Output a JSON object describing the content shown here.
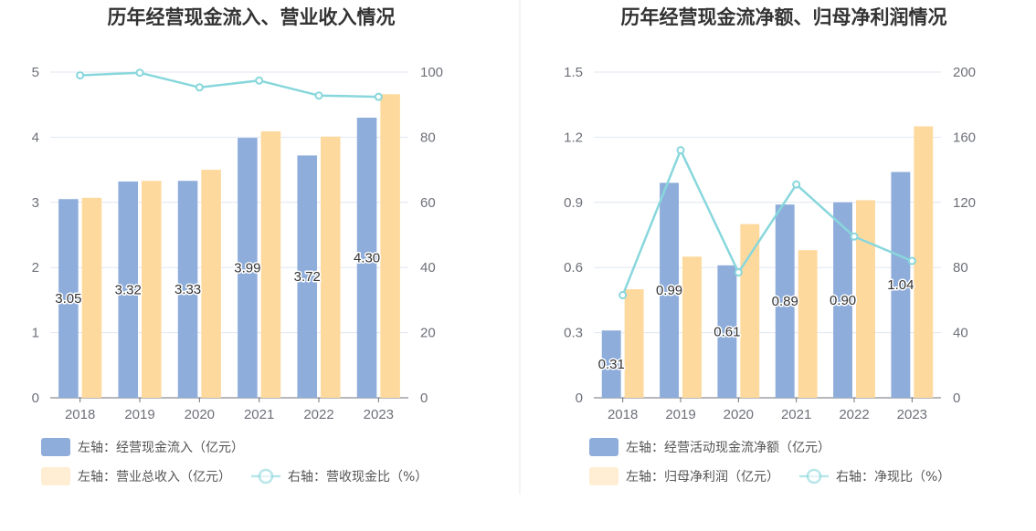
{
  "chart_data": [
    {
      "type": "bar",
      "title": "历年经营现金流入、营业收入情况",
      "categories": [
        "2018",
        "2019",
        "2020",
        "2021",
        "2022",
        "2023"
      ],
      "ylim": [
        0,
        5
      ],
      "y_ticks": [
        "0",
        "1",
        "2",
        "3",
        "4",
        "5"
      ],
      "y2lim": [
        0,
        100
      ],
      "y2_ticks": [
        "0",
        "20",
        "40",
        "60",
        "80",
        "100"
      ],
      "grid": true,
      "legend_position": "bottom",
      "series": [
        {
          "name": "左轴：经营现金流入（亿元）",
          "type": "bar",
          "axis": "left",
          "color": "#8eaddb",
          "values": [
            3.05,
            3.32,
            3.33,
            3.99,
            3.72,
            4.3
          ],
          "labels": [
            "3.05",
            "3.32",
            "3.33",
            "3.99",
            "3.72",
            "4.30"
          ]
        },
        {
          "name": "左轴：营业总收入（亿元）",
          "type": "bar",
          "axis": "left",
          "color": "#fed99e",
          "values": [
            3.07,
            3.33,
            3.5,
            4.09,
            4.01,
            4.66
          ]
        },
        {
          "name": "右轴：营收现金比（%）",
          "type": "line",
          "axis": "right",
          "color": "#88d7dc",
          "values": [
            99.0,
            99.8,
            95.3,
            97.4,
            92.8,
            92.4
          ]
        }
      ]
    },
    {
      "type": "bar",
      "title": "历年经营现金流净额、归母净利润情况",
      "categories": [
        "2018",
        "2019",
        "2020",
        "2021",
        "2022",
        "2023"
      ],
      "ylim": [
        0,
        1.5
      ],
      "y_ticks": [
        "0",
        "0.3",
        "0.6",
        "0.9",
        "1.2",
        "1.5"
      ],
      "y2lim": [
        0,
        200
      ],
      "y2_ticks": [
        "0",
        "40",
        "80",
        "120",
        "160",
        "200"
      ],
      "grid": true,
      "legend_position": "bottom",
      "series": [
        {
          "name": "左轴：经营活动现金流净额（亿元）",
          "type": "bar",
          "axis": "left",
          "color": "#8eaddb",
          "values": [
            0.31,
            0.99,
            0.61,
            0.89,
            0.9,
            1.04
          ],
          "labels": [
            "0.31",
            "0.99",
            "0.61",
            "0.89",
            "0.90",
            "1.04"
          ]
        },
        {
          "name": "左轴：归母净利润（亿元）",
          "type": "bar",
          "axis": "left",
          "color": "#fed99e",
          "values": [
            0.5,
            0.65,
            0.8,
            0.68,
            0.91,
            1.25
          ]
        },
        {
          "name": "右轴：净现比（%）",
          "type": "line",
          "axis": "right",
          "color": "#88d7dc",
          "values": [
            63,
            152,
            77,
            131,
            99,
            84
          ]
        }
      ]
    }
  ]
}
